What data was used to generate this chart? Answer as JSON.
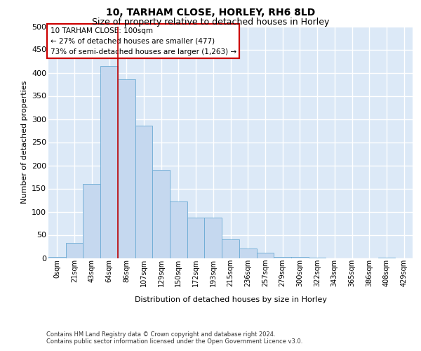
{
  "title_line1": "10, TARHAM CLOSE, HORLEY, RH6 8LD",
  "title_line2": "Size of property relative to detached houses in Horley",
  "xlabel": "Distribution of detached houses by size in Horley",
  "ylabel": "Number of detached properties",
  "footnote1": "Contains HM Land Registry data © Crown copyright and database right 2024.",
  "footnote2": "Contains public sector information licensed under the Open Government Licence v3.0.",
  "annotation_line1": "10 TARHAM CLOSE: 100sqm",
  "annotation_line2": "← 27% of detached houses are smaller (477)",
  "annotation_line3": "73% of semi-detached houses are larger (1,263) →",
  "bar_labels": [
    "0sqm",
    "21sqm",
    "43sqm",
    "64sqm",
    "86sqm",
    "107sqm",
    "129sqm",
    "150sqm",
    "172sqm",
    "193sqm",
    "215sqm",
    "236sqm",
    "257sqm",
    "279sqm",
    "300sqm",
    "322sqm",
    "343sqm",
    "365sqm",
    "386sqm",
    "408sqm",
    "429sqm"
  ],
  "bar_heights": [
    2,
    32,
    160,
    415,
    385,
    285,
    190,
    122,
    87,
    87,
    40,
    20,
    11,
    3,
    3,
    1,
    0,
    0,
    0,
    1,
    0
  ],
  "bar_color": "#c5d8ef",
  "bar_edge_color": "#6aaad4",
  "vline_color": "#c00000",
  "vline_position": 3.5,
  "annotation_box_edgecolor": "#cc0000",
  "background_color": "#dce9f7",
  "grid_color": "#ffffff",
  "ylim": [
    0,
    500
  ],
  "yticks": [
    0,
    50,
    100,
    150,
    200,
    250,
    300,
    350,
    400,
    450,
    500
  ],
  "title1_fontsize": 10,
  "title2_fontsize": 9,
  "annotation_fontsize": 7.5,
  "tick_fontsize": 7,
  "axis_label_fontsize": 8,
  "footnote_fontsize": 6
}
